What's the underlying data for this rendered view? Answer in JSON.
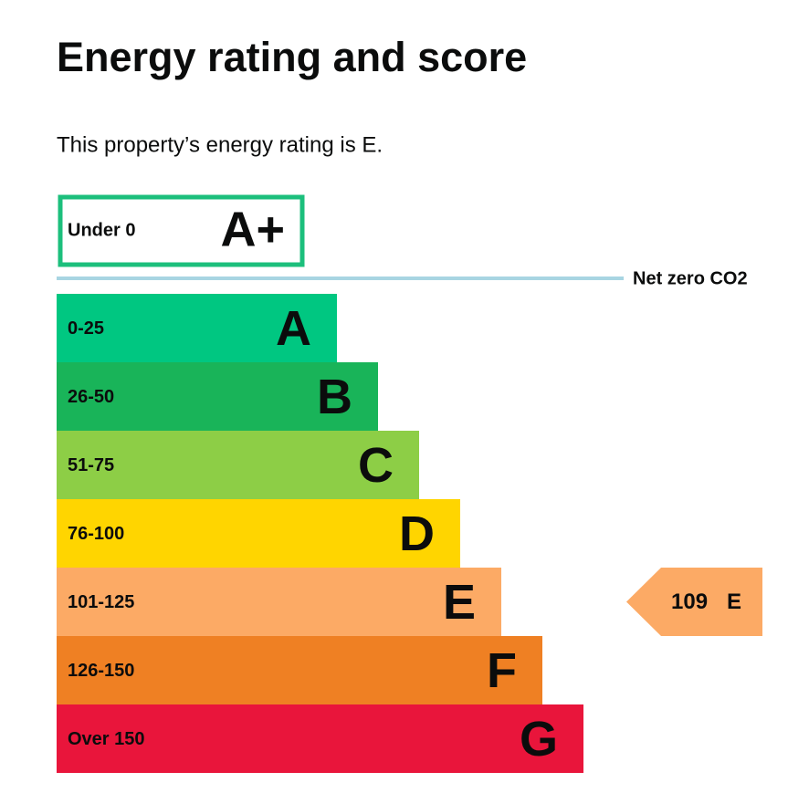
{
  "title": "Energy rating and score",
  "intro": "This property’s energy rating is E.",
  "net_zero_band": {
    "range": "Under 0",
    "letter": "A+",
    "color": "#1cbf7c"
  },
  "net_zero_line": "Net zero CO2",
  "bands": [
    {
      "range": "0-25",
      "letter": "A",
      "color": "#00c781"
    },
    {
      "range": "26-50",
      "letter": "B",
      "color": "#19b459"
    },
    {
      "range": "51-75",
      "letter": "C",
      "color": "#8dce46"
    },
    {
      "range": "76-100",
      "letter": "D",
      "color": "#ffd500"
    },
    {
      "range": "101-125",
      "letter": "E",
      "color": "#fcaa65"
    },
    {
      "range": "126-150",
      "letter": "F",
      "color": "#ef8023"
    },
    {
      "range": "Over 150",
      "letter": "G",
      "color": "#e9153b"
    }
  ],
  "current": {
    "score": "109",
    "letter": "E",
    "band": 4,
    "color": "#fcaa65"
  }
}
